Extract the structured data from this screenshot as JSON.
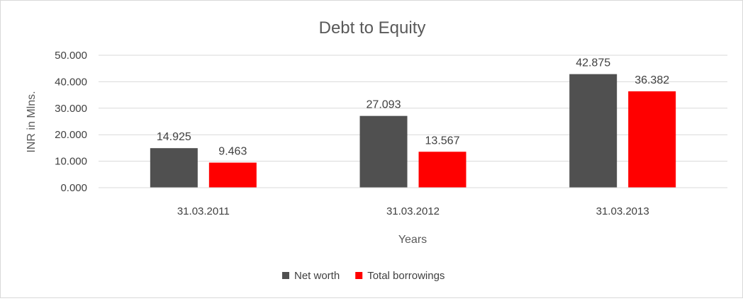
{
  "chart_data": {
    "type": "bar",
    "title": "Debt to Equity",
    "xlabel": "Years",
    "ylabel": "INR in Mlns.",
    "categories": [
      "31.03.2011",
      "31.03.2012",
      "31.03.2013"
    ],
    "series": [
      {
        "name": "Net worth",
        "color": "#505050",
        "values": [
          14.925,
          27.093,
          42.875
        ],
        "labels": [
          "14.925",
          "27.093",
          "42.875"
        ]
      },
      {
        "name": "Total borrowings",
        "color": "#ff0000",
        "values": [
          9.463,
          13.567,
          36.382
        ],
        "labels": [
          "9.463",
          "13.567",
          "36.382"
        ]
      }
    ],
    "ylim": [
      0,
      50
    ],
    "yticks": [
      0,
      10,
      20,
      30,
      40,
      50
    ],
    "ytick_labels": [
      "0.000",
      "10.000",
      "20.000",
      "30.000",
      "40.000",
      "50.000"
    ],
    "grid": true,
    "legend_position": "bottom"
  }
}
